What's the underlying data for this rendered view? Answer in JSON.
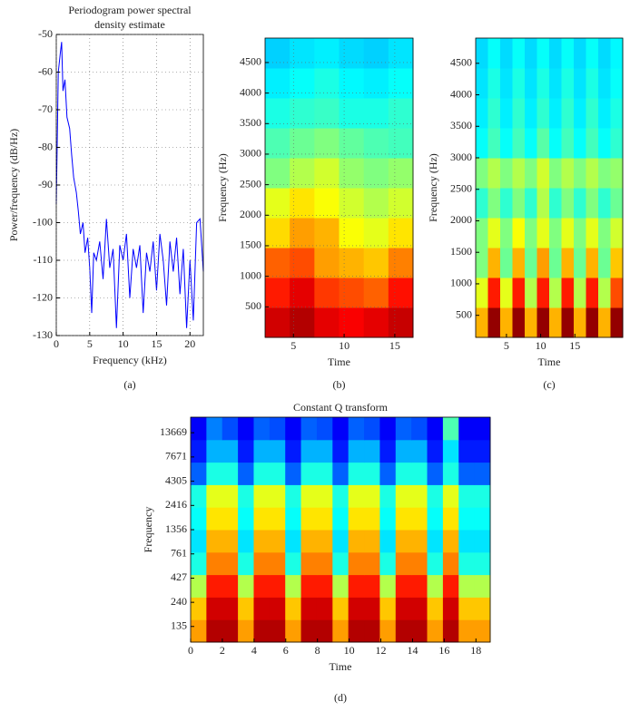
{
  "chart_data": [
    {
      "type": "line",
      "title": [
        "Periodogram power spectral",
        "density estimate"
      ],
      "xlabel": "Frequency (kHz)",
      "ylabel": "Power/frequency (dB/Hz)",
      "caption": "(a)",
      "color": "#0000ff",
      "grid": true,
      "xlim": [
        0,
        22
      ],
      "ylim": [
        -130,
        -50
      ],
      "xticks": [
        0,
        5,
        10,
        15,
        20
      ],
      "yticks": [
        -130,
        -120,
        -110,
        -100,
        -90,
        -80,
        -70,
        -60,
        -50
      ],
      "x": [
        0,
        0.3,
        0.6,
        0.8,
        1,
        1.3,
        1.6,
        2,
        2.3,
        2.6,
        3,
        3.3,
        3.6,
        4,
        4.3,
        4.7,
        5,
        5.3,
        5.6,
        6,
        6.5,
        7,
        7.5,
        8,
        8.5,
        9,
        9.5,
        10,
        10.5,
        11,
        11.5,
        12,
        12.5,
        13,
        13.5,
        14,
        14.5,
        15,
        15.5,
        16,
        16.5,
        17,
        17.5,
        18,
        18.5,
        19,
        19.5,
        20,
        20.5,
        21,
        21.5,
        22
      ],
      "values": [
        -95,
        -60,
        -55,
        -52,
        -65,
        -62,
        -72,
        -75,
        -82,
        -88,
        -92,
        -97,
        -103,
        -100,
        -108,
        -104,
        -112,
        -124,
        -108,
        -110,
        -105,
        -115,
        -99,
        -112,
        -107,
        -128,
        -106,
        -110,
        -103,
        -120,
        -107,
        -112,
        -106,
        -124,
        -108,
        -113,
        -105,
        -118,
        -103,
        -110,
        -122,
        -105,
        -113,
        -104,
        -119,
        -107,
        -128,
        -110,
        -126,
        -100,
        -99,
        -113
      ]
    },
    {
      "type": "heatmap",
      "xlabel": "Time",
      "ylabel": "Frequency (Hz)",
      "caption": "(b)",
      "grid": true,
      "zlim": [
        0,
        1
      ],
      "xlim": [
        2.2,
        16.8
      ],
      "ylim": [
        0,
        4900
      ],
      "xticks": [
        5,
        10,
        15
      ],
      "yticks": [
        500,
        1000,
        1500,
        2000,
        2500,
        3000,
        3500,
        4000,
        4500
      ],
      "z": [
        [
          0.92,
          0.95,
          0.9,
          0.88,
          0.9,
          0.93
        ],
        [
          0.85,
          0.9,
          0.82,
          0.8,
          0.78,
          0.86
        ],
        [
          0.78,
          0.8,
          0.72,
          0.7,
          0.68,
          0.75
        ],
        [
          0.66,
          0.72,
          0.7,
          0.62,
          0.6,
          0.65
        ],
        [
          0.6,
          0.65,
          0.62,
          0.58,
          0.55,
          0.58
        ],
        [
          0.5,
          0.55,
          0.58,
          0.52,
          0.5,
          0.52
        ],
        [
          0.45,
          0.48,
          0.5,
          0.47,
          0.45,
          0.44
        ],
        [
          0.4,
          0.42,
          0.43,
          0.4,
          0.4,
          0.42
        ],
        [
          0.36,
          0.38,
          0.4,
          0.37,
          0.36,
          0.38
        ],
        [
          0.33,
          0.35,
          0.36,
          0.34,
          0.33,
          0.35
        ]
      ]
    },
    {
      "type": "heatmap",
      "xlabel": "Time",
      "ylabel": "Frequency (Hz)",
      "caption": "(c)",
      "grid": false,
      "zlim": [
        0,
        1
      ],
      "xlim": [
        0.5,
        22
      ],
      "ylim": [
        150,
        4900
      ],
      "xticks": [
        5,
        10,
        15
      ],
      "yticks": [
        500,
        1000,
        1500,
        2000,
        2500,
        3000,
        3500,
        4000,
        4500
      ],
      "z": [
        [
          0.7,
          0.98,
          0.7,
          0.98,
          0.7,
          0.98,
          0.7,
          0.98,
          0.7,
          0.98,
          0.7,
          0.98
        ],
        [
          0.6,
          0.85,
          0.6,
          0.85,
          0.55,
          0.85,
          0.55,
          0.85,
          0.55,
          0.85,
          0.55,
          0.8
        ],
        [
          0.5,
          0.7,
          0.48,
          0.7,
          0.48,
          0.72,
          0.48,
          0.7,
          0.48,
          0.7,
          0.48,
          0.68
        ],
        [
          0.5,
          0.6,
          0.5,
          0.62,
          0.5,
          0.6,
          0.5,
          0.6,
          0.5,
          0.6,
          0.5,
          0.58
        ],
        [
          0.42,
          0.5,
          0.42,
          0.5,
          0.42,
          0.55,
          0.42,
          0.5,
          0.42,
          0.5,
          0.42,
          0.48
        ],
        [
          0.5,
          0.55,
          0.5,
          0.55,
          0.5,
          0.58,
          0.5,
          0.55,
          0.5,
          0.55,
          0.5,
          0.52
        ],
        [
          0.38,
          0.44,
          0.38,
          0.44,
          0.38,
          0.46,
          0.38,
          0.44,
          0.38,
          0.44,
          0.38,
          0.42
        ],
        [
          0.36,
          0.42,
          0.36,
          0.42,
          0.36,
          0.42,
          0.36,
          0.42,
          0.36,
          0.42,
          0.36,
          0.4
        ],
        [
          0.35,
          0.4,
          0.35,
          0.4,
          0.35,
          0.4,
          0.35,
          0.4,
          0.35,
          0.4,
          0.35,
          0.38
        ],
        [
          0.34,
          0.38,
          0.34,
          0.38,
          0.34,
          0.38,
          0.34,
          0.38,
          0.34,
          0.38,
          0.34,
          0.37
        ]
      ]
    },
    {
      "type": "heatmap",
      "title": "Constant Q transform",
      "xlabel": "Time",
      "ylabel": "Frequency",
      "caption": "(d)",
      "grid": false,
      "yscale": "log",
      "zlim": [
        0,
        1
      ],
      "xlim": [
        0,
        18.9
      ],
      "ylim": [
        93,
        19800
      ],
      "xticks": [
        0,
        2,
        4,
        6,
        8,
        10,
        12,
        14,
        16,
        18
      ],
      "yticks": [
        135,
        240,
        427,
        761,
        1356,
        2416,
        4305,
        7671,
        13669
      ],
      "z": [
        [
          0.72,
          0.95,
          0.95,
          0.72,
          0.95,
          0.95,
          0.72,
          0.95,
          0.95,
          0.72,
          0.95,
          0.95,
          0.72,
          0.95,
          0.95,
          0.72,
          0.95,
          0.72,
          0.72
        ],
        [
          0.68,
          0.92,
          0.92,
          0.68,
          0.92,
          0.92,
          0.68,
          0.92,
          0.92,
          0.68,
          0.92,
          0.92,
          0.68,
          0.92,
          0.92,
          0.68,
          0.92,
          0.68,
          0.68
        ],
        [
          0.55,
          0.85,
          0.85,
          0.55,
          0.85,
          0.85,
          0.55,
          0.85,
          0.85,
          0.55,
          0.85,
          0.85,
          0.55,
          0.85,
          0.85,
          0.55,
          0.85,
          0.55,
          0.55
        ],
        [
          0.4,
          0.75,
          0.75,
          0.4,
          0.75,
          0.75,
          0.4,
          0.75,
          0.75,
          0.4,
          0.75,
          0.75,
          0.4,
          0.75,
          0.75,
          0.4,
          0.75,
          0.4,
          0.4
        ],
        [
          0.35,
          0.7,
          0.7,
          0.35,
          0.7,
          0.7,
          0.35,
          0.7,
          0.7,
          0.35,
          0.7,
          0.7,
          0.35,
          0.7,
          0.7,
          0.35,
          0.7,
          0.35,
          0.35
        ],
        [
          0.38,
          0.65,
          0.65,
          0.38,
          0.65,
          0.65,
          0.38,
          0.65,
          0.65,
          0.38,
          0.65,
          0.65,
          0.38,
          0.65,
          0.65,
          0.38,
          0.65,
          0.38,
          0.38
        ],
        [
          0.4,
          0.6,
          0.6,
          0.4,
          0.6,
          0.6,
          0.4,
          0.6,
          0.6,
          0.4,
          0.6,
          0.6,
          0.4,
          0.6,
          0.6,
          0.4,
          0.6,
          0.4,
          0.4
        ],
        [
          0.22,
          0.4,
          0.4,
          0.22,
          0.4,
          0.4,
          0.22,
          0.4,
          0.4,
          0.22,
          0.4,
          0.4,
          0.22,
          0.4,
          0.4,
          0.22,
          0.4,
          0.22,
          0.22
        ],
        [
          0.15,
          0.3,
          0.3,
          0.15,
          0.3,
          0.3,
          0.15,
          0.3,
          0.3,
          0.15,
          0.3,
          0.3,
          0.15,
          0.3,
          0.3,
          0.15,
          0.35,
          0.15,
          0.15
        ],
        [
          0.12,
          0.25,
          0.2,
          0.12,
          0.22,
          0.2,
          0.12,
          0.22,
          0.2,
          0.12,
          0.22,
          0.2,
          0.12,
          0.22,
          0.2,
          0.12,
          0.45,
          0.12,
          0.12
        ]
      ]
    }
  ]
}
